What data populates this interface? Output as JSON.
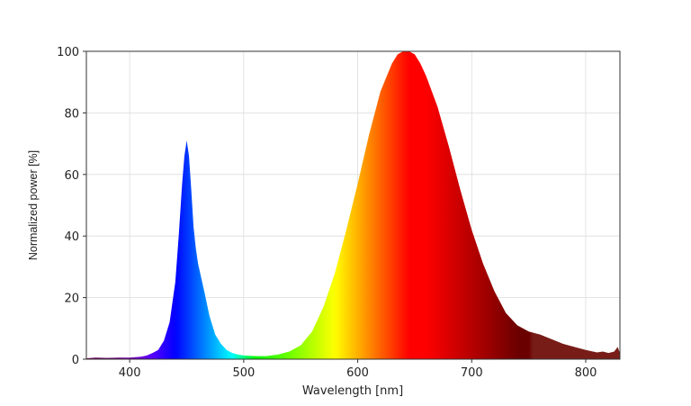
{
  "chart_data": {
    "type": "area",
    "xlabel": "Wavelength [nm]",
    "ylabel": "Normalized power [%]",
    "xlim": [
      362,
      830
    ],
    "ylim": [
      0,
      100
    ],
    "xticks": [
      400,
      500,
      600,
      700,
      800
    ],
    "yticks": [
      0,
      20,
      40,
      60,
      80,
      100
    ],
    "grid": true,
    "fill": "spectral colors by wavelength",
    "series": [
      {
        "x": [
          362,
          370,
          380,
          390,
          400,
          410,
          415,
          420,
          425,
          430,
          435,
          440,
          443,
          446,
          448,
          450,
          452,
          454,
          456,
          458,
          460,
          463,
          466,
          470,
          475,
          480,
          485,
          490,
          495,
          500,
          510,
          520,
          530,
          540,
          550,
          560,
          570,
          580,
          590,
          600,
          610,
          620,
          630,
          635,
          640,
          645,
          650,
          655,
          660,
          670,
          680,
          690,
          700,
          710,
          720,
          730,
          740,
          750,
          760,
          770,
          780,
          790,
          800,
          810,
          815,
          820,
          825,
          828,
          830
        ],
        "y": [
          0.3,
          0.5,
          0.4,
          0.5,
          0.5,
          0.8,
          1.2,
          2,
          3,
          6,
          12,
          25,
          40,
          57,
          66,
          71,
          66,
          55,
          43,
          36,
          31,
          26,
          21,
          14,
          8,
          5,
          3,
          2,
          1.5,
          1.2,
          1.0,
          1.0,
          1.5,
          2.5,
          4.5,
          9,
          17,
          28,
          42,
          57,
          73,
          87,
          96,
          99,
          100,
          100,
          99,
          96,
          92,
          82,
          69,
          55,
          42,
          31,
          22,
          15,
          11,
          9,
          8,
          6.5,
          5,
          4,
          3,
          2.2,
          2.5,
          2.0,
          2.5,
          4,
          2
        ]
      }
    ]
  }
}
